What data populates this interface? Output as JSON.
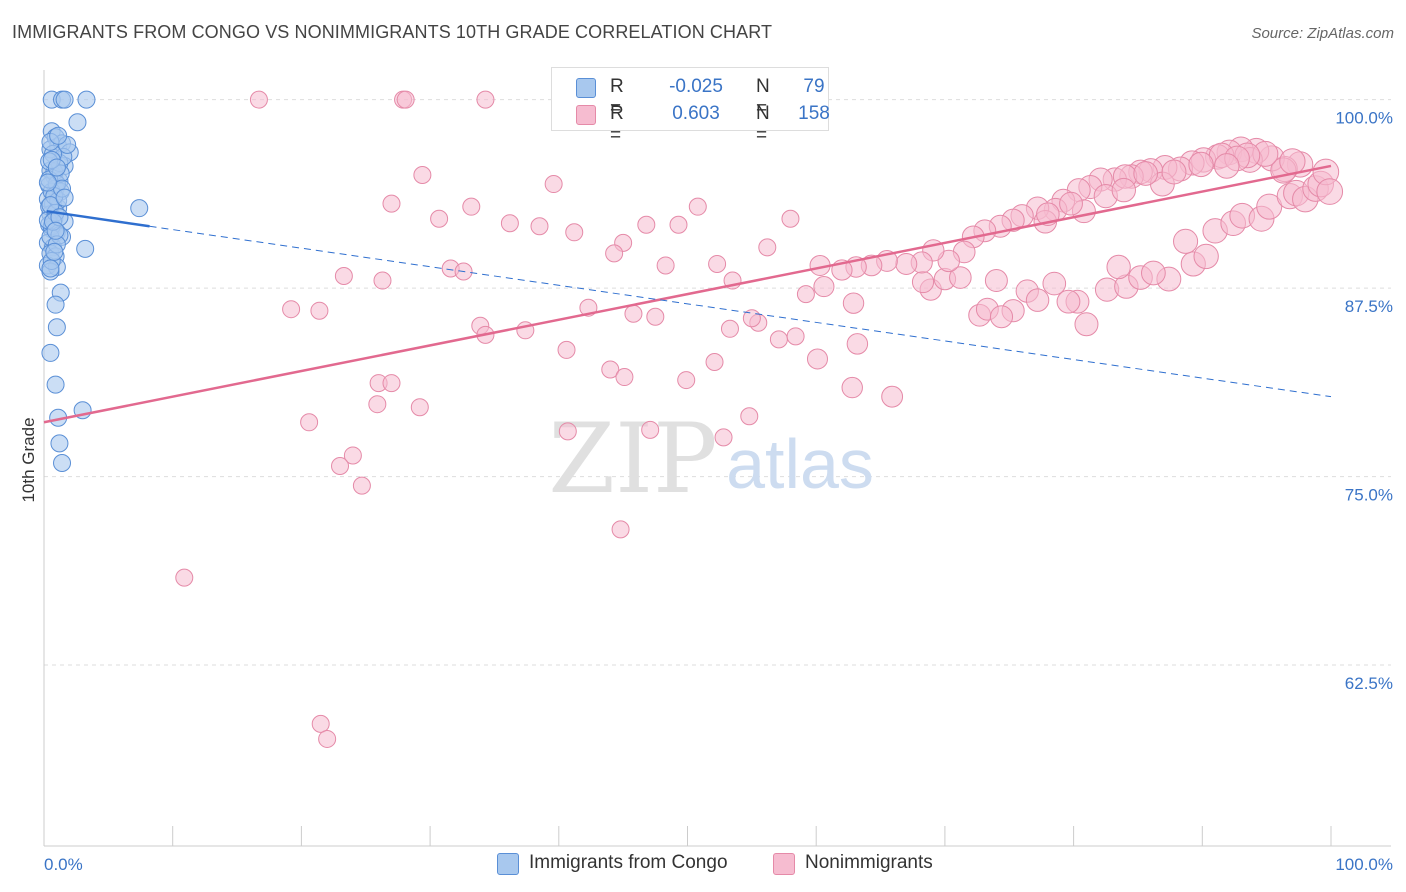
{
  "title": "IMMIGRANTS FROM CONGO VS NONIMMIGRANTS 10TH GRADE CORRELATION CHART",
  "source": "Source: ZipAtlas.com",
  "watermark": {
    "zip": "ZIP",
    "atlas": "atlas"
  },
  "legend": {
    "rows": [
      {
        "r_label": "R =",
        "r_value": "-0.025",
        "n_label": "N =",
        "n_value": "79"
      },
      {
        "r_label": "R =",
        "r_value": "0.603",
        "n_label": "N =",
        "n_value": "158"
      }
    ]
  },
  "colors": {
    "blue_fill": "#a8c8ee",
    "blue_stroke": "#5a8fd6",
    "blue_line": "#2f6fcf",
    "pink_fill": "#f6bcd0",
    "pink_stroke": "#e58aa8",
    "pink_line": "#e2698f",
    "tick_label": "#3a74c6",
    "grid": "#dddddd"
  },
  "chart_data": {
    "type": "scatter",
    "title": "IMMIGRANTS FROM CONGO VS NONIMMIGRANTS 10TH GRADE CORRELATION CHART",
    "ylabel": "10th Grade",
    "xlabel": "",
    "xlim": [
      0,
      100
    ],
    "ylim": [
      50.5,
      101.3
    ],
    "x_tick_labels": [
      "0.0%",
      "100.0%"
    ],
    "y_ticks": [
      {
        "value": 100,
        "label": "100.0%"
      },
      {
        "value": 87.5,
        "label": "87.5%"
      },
      {
        "value": 75,
        "label": "75.0%"
      },
      {
        "value": 62.5,
        "label": "62.5%"
      }
    ],
    "series": [
      {
        "name": "Immigrants from Congo",
        "color": "blue",
        "r": -0.025,
        "n": 79,
        "trend_solid": [
          [
            0.2,
            92.6
          ],
          [
            8.2,
            91.6
          ]
        ],
        "trend_dashed": [
          [
            8.2,
            91.6
          ],
          [
            100.0,
            80.3
          ]
        ],
        "points": [
          [
            0.6,
            100.0
          ],
          [
            1.4,
            100.0
          ],
          [
            1.6,
            100.0
          ],
          [
            3.3,
            100.0
          ],
          [
            2.6,
            98.5
          ],
          [
            0.6,
            97.9
          ],
          [
            0.9,
            97.5
          ],
          [
            1.1,
            96.9
          ],
          [
            0.5,
            96.7
          ],
          [
            1.4,
            97.1
          ],
          [
            2.0,
            96.5
          ],
          [
            1.6,
            95.6
          ],
          [
            0.5,
            95.3
          ],
          [
            0.8,
            94.9
          ],
          [
            1.2,
            94.6
          ],
          [
            0.4,
            94.3
          ],
          [
            0.9,
            94.1
          ],
          [
            1.3,
            93.9
          ],
          [
            0.3,
            93.4
          ],
          [
            0.7,
            93.1
          ],
          [
            1.1,
            92.8
          ],
          [
            0.5,
            92.4
          ],
          [
            0.8,
            92.1
          ],
          [
            1.6,
            91.9
          ],
          [
            0.4,
            91.7
          ],
          [
            0.6,
            91.4
          ],
          [
            1.0,
            91.2
          ],
          [
            1.4,
            90.9
          ],
          [
            0.3,
            90.5
          ],
          [
            0.7,
            90.2
          ],
          [
            0.5,
            89.8
          ],
          [
            0.9,
            89.6
          ],
          [
            0.3,
            89.0
          ],
          [
            1.0,
            88.9
          ],
          [
            0.5,
            88.6
          ],
          [
            1.3,
            87.2
          ],
          [
            0.9,
            86.4
          ],
          [
            1.0,
            84.9
          ],
          [
            0.5,
            83.2
          ],
          [
            0.9,
            81.1
          ],
          [
            3.0,
            79.4
          ],
          [
            1.1,
            78.9
          ],
          [
            1.2,
            77.2
          ],
          [
            1.4,
            75.9
          ],
          [
            7.4,
            92.8
          ],
          [
            3.2,
            90.1
          ],
          [
            0.6,
            93.9
          ],
          [
            0.8,
            95.2
          ],
          [
            1.2,
            95.8
          ],
          [
            0.4,
            92.9
          ],
          [
            0.6,
            91.6
          ],
          [
            1.5,
            96.2
          ],
          [
            0.7,
            96.4
          ],
          [
            1.0,
            94.4
          ],
          [
            0.5,
            90.9
          ],
          [
            1.8,
            97.0
          ],
          [
            0.3,
            92.0
          ],
          [
            1.1,
            93.3
          ],
          [
            0.6,
            89.3
          ],
          [
            1.2,
            91.0
          ],
          [
            0.4,
            94.7
          ],
          [
            0.9,
            92.5
          ],
          [
            1.3,
            95.1
          ],
          [
            0.5,
            97.2
          ],
          [
            0.8,
            93.6
          ],
          [
            1.0,
            90.4
          ],
          [
            0.4,
            95.9
          ],
          [
            1.4,
            94.1
          ],
          [
            0.7,
            91.9
          ],
          [
            0.5,
            93.0
          ],
          [
            1.1,
            97.6
          ],
          [
            0.8,
            89.9
          ],
          [
            0.3,
            94.5
          ],
          [
            1.2,
            92.2
          ],
          [
            0.6,
            96.0
          ],
          [
            0.9,
            91.3
          ],
          [
            1.6,
            93.5
          ],
          [
            0.5,
            88.8
          ],
          [
            1.0,
            95.5
          ]
        ]
      },
      {
        "name": "Nonimmigrants",
        "color": "pink",
        "r": 0.603,
        "n": 158,
        "trend": [
          [
            0.0,
            78.6
          ],
          [
            100.0,
            95.6
          ]
        ],
        "points": [
          [
            16.7,
            100.0
          ],
          [
            27.9,
            100.0
          ],
          [
            28.1,
            100.0
          ],
          [
            34.3,
            100.0
          ],
          [
            29.4,
            95.0
          ],
          [
            39.6,
            94.4
          ],
          [
            27.0,
            93.1
          ],
          [
            33.2,
            92.9
          ],
          [
            50.8,
            92.9
          ],
          [
            30.7,
            92.1
          ],
          [
            36.2,
            91.8
          ],
          [
            38.5,
            91.6
          ],
          [
            46.8,
            91.7
          ],
          [
            49.3,
            91.7
          ],
          [
            45.0,
            90.5
          ],
          [
            44.3,
            89.8
          ],
          [
            31.6,
            88.8
          ],
          [
            41.2,
            91.2
          ],
          [
            58.0,
            92.1
          ],
          [
            48.3,
            89.0
          ],
          [
            56.2,
            90.2
          ],
          [
            52.3,
            89.1
          ],
          [
            53.5,
            88.0
          ],
          [
            60.3,
            89.0
          ],
          [
            26.3,
            88.0
          ],
          [
            23.3,
            88.3
          ],
          [
            32.6,
            88.6
          ],
          [
            19.2,
            86.1
          ],
          [
            21.4,
            86.0
          ],
          [
            33.9,
            85.0
          ],
          [
            34.3,
            84.4
          ],
          [
            42.3,
            86.2
          ],
          [
            45.8,
            85.8
          ],
          [
            47.5,
            85.6
          ],
          [
            59.2,
            87.1
          ],
          [
            55.5,
            85.2
          ],
          [
            62.9,
            86.5
          ],
          [
            53.3,
            84.8
          ],
          [
            57.1,
            84.1
          ],
          [
            63.2,
            83.8
          ],
          [
            37.4,
            84.7
          ],
          [
            40.6,
            83.4
          ],
          [
            44.0,
            82.1
          ],
          [
            45.1,
            81.6
          ],
          [
            55.0,
            85.5
          ],
          [
            58.4,
            84.3
          ],
          [
            60.6,
            87.6
          ],
          [
            68.9,
            87.4
          ],
          [
            52.1,
            82.6
          ],
          [
            49.9,
            81.4
          ],
          [
            62.8,
            80.9
          ],
          [
            65.9,
            80.3
          ],
          [
            54.8,
            79.0
          ],
          [
            60.1,
            82.8
          ],
          [
            26.0,
            81.2
          ],
          [
            27.0,
            81.2
          ],
          [
            25.9,
            79.8
          ],
          [
            29.2,
            79.6
          ],
          [
            20.6,
            78.6
          ],
          [
            40.7,
            78.0
          ],
          [
            47.1,
            78.1
          ],
          [
            52.8,
            77.6
          ],
          [
            24.0,
            76.4
          ],
          [
            23.0,
            75.7
          ],
          [
            24.7,
            74.4
          ],
          [
            44.8,
            71.5
          ],
          [
            10.9,
            68.3
          ],
          [
            21.5,
            58.6
          ],
          [
            22.0,
            57.6
          ],
          [
            70.0,
            88.1
          ],
          [
            71.2,
            88.2
          ],
          [
            74.0,
            88.0
          ],
          [
            68.3,
            87.9
          ],
          [
            76.4,
            87.3
          ],
          [
            78.5,
            87.8
          ],
          [
            80.3,
            86.6
          ],
          [
            82.6,
            87.4
          ],
          [
            84.1,
            87.6
          ],
          [
            85.2,
            88.2
          ],
          [
            87.4,
            88.1
          ],
          [
            79.6,
            86.6
          ],
          [
            75.3,
            86.0
          ],
          [
            72.7,
            85.7
          ],
          [
            73.3,
            86.1
          ],
          [
            74.4,
            85.6
          ],
          [
            81.0,
            85.1
          ],
          [
            77.2,
            86.7
          ],
          [
            86.2,
            88.5
          ],
          [
            83.5,
            88.9
          ],
          [
            89.3,
            89.1
          ],
          [
            90.3,
            89.6
          ],
          [
            88.7,
            90.6
          ],
          [
            91.0,
            91.3
          ],
          [
            92.4,
            91.8
          ],
          [
            93.1,
            92.3
          ],
          [
            94.6,
            92.1
          ],
          [
            95.2,
            92.9
          ],
          [
            96.8,
            93.6
          ],
          [
            97.3,
            93.8
          ],
          [
            98.0,
            93.4
          ],
          [
            98.8,
            94.1
          ],
          [
            99.2,
            94.4
          ],
          [
            99.6,
            95.2
          ],
          [
            97.6,
            95.7
          ],
          [
            96.4,
            95.4
          ],
          [
            95.4,
            96.1
          ],
          [
            94.2,
            96.6
          ],
          [
            93.0,
            96.7
          ],
          [
            92.1,
            96.5
          ],
          [
            91.2,
            96.2
          ],
          [
            90.1,
            96.0
          ],
          [
            89.2,
            95.8
          ],
          [
            88.3,
            95.4
          ],
          [
            87.1,
            95.5
          ],
          [
            86.0,
            95.3
          ],
          [
            85.2,
            95.2
          ],
          [
            84.5,
            94.9
          ],
          [
            83.2,
            94.7
          ],
          [
            82.1,
            94.7
          ],
          [
            81.3,
            94.2
          ],
          [
            80.4,
            94.0
          ],
          [
            79.2,
            93.3
          ],
          [
            78.6,
            92.7
          ],
          [
            77.2,
            92.8
          ],
          [
            76.0,
            92.3
          ],
          [
            75.3,
            92.0
          ],
          [
            74.3,
            91.6
          ],
          [
            73.1,
            91.3
          ],
          [
            72.2,
            90.9
          ],
          [
            71.5,
            89.9
          ],
          [
            70.3,
            89.3
          ],
          [
            69.1,
            90.0
          ],
          [
            68.2,
            89.2
          ],
          [
            67.0,
            89.1
          ],
          [
            65.5,
            89.3
          ],
          [
            64.3,
            89.0
          ],
          [
            63.1,
            88.9
          ],
          [
            62.0,
            88.7
          ],
          [
            96.3,
            95.3
          ],
          [
            93.7,
            96.0
          ],
          [
            91.5,
            96.3
          ],
          [
            89.9,
            95.7
          ],
          [
            86.9,
            94.4
          ],
          [
            84.0,
            94.9
          ],
          [
            82.5,
            93.6
          ],
          [
            80.8,
            92.6
          ],
          [
            77.8,
            91.9
          ],
          [
            99.9,
            93.9
          ],
          [
            97.0,
            95.9
          ],
          [
            94.9,
            96.4
          ],
          [
            93.5,
            96.3
          ],
          [
            92.7,
            96.1
          ],
          [
            91.9,
            95.6
          ],
          [
            87.8,
            95.2
          ],
          [
            85.6,
            95.1
          ],
          [
            83.9,
            94.0
          ],
          [
            79.8,
            93.1
          ],
          [
            78.0,
            92.4
          ]
        ]
      }
    ]
  },
  "bottom_legend": [
    "Immigrants from Congo",
    "Nonimmigrants"
  ]
}
